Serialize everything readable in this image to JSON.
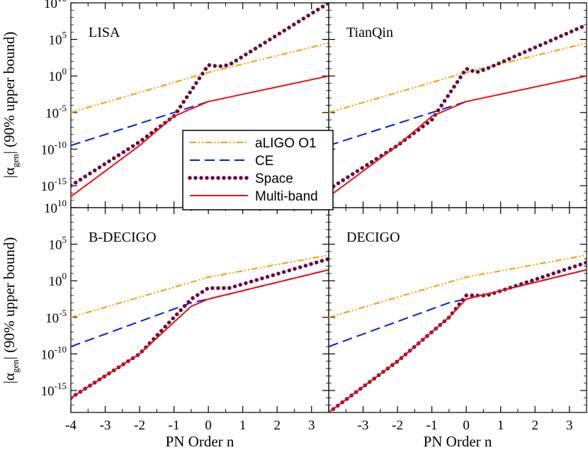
{
  "chart_data": {
    "type": "line",
    "xlabel": "PN Order n",
    "ylabel": "|α",
    "ylabel_sub": "gen",
    "ylabel_rest": "| (90% upper bound)",
    "xlim": [
      -4,
      3.5
    ],
    "ylim_log10": [
      -18,
      10
    ],
    "x_ticks": [
      -4,
      -3,
      -2,
      -1,
      0,
      1,
      2,
      3
    ],
    "x_tick_labels": [
      "-4",
      "-3",
      "-2",
      "-1",
      "0",
      "1",
      "2",
      "3"
    ],
    "y_ticks": [
      {
        "base": "10",
        "exp": "10"
      },
      {
        "base": "10",
        "exp": "5"
      },
      {
        "base": "10",
        "exp": "0"
      },
      {
        "base": "10",
        "exp": "-5"
      },
      {
        "base": "10",
        "exp": "-10"
      },
      {
        "base": "10",
        "exp": "-15"
      }
    ],
    "legend": [
      {
        "name": "aLIGO O1",
        "color": "#f5a000",
        "style": "dash-dot-dot"
      },
      {
        "name": "CE",
        "color": "#0022dd",
        "style": "dash"
      },
      {
        "name": "Space",
        "color": "#6b0a3c",
        "style": "dot"
      },
      {
        "name": "Multi-band",
        "color": "#ee1111",
        "style": "solid"
      }
    ],
    "panels": [
      {
        "title": "LISA",
        "series": [
          {
            "name": "aLIGO O1",
            "x": [
              -4,
              0,
              3.5
            ],
            "y_log10": [
              -5,
              0.5,
              4.5
            ]
          },
          {
            "name": "CE",
            "x": [
              -4,
              -1,
              0
            ],
            "y_log10": [
              -9.5,
              -5,
              -3.5
            ]
          },
          {
            "name": "Space",
            "x": [
              -4,
              -2,
              -1,
              0,
              0.3,
              0.6,
              3.5
            ],
            "y_log10": [
              -15,
              -9,
              -5.5,
              1.5,
              1.3,
              1.5,
              10
            ]
          },
          {
            "name": "Multi-band",
            "x": [
              -4,
              -2,
              -1,
              0,
              3.5
            ],
            "y_log10": [
              -16.5,
              -9.5,
              -5.5,
              -3.5,
              0
            ]
          }
        ]
      },
      {
        "title": "TianQin",
        "series": [
          {
            "name": "aLIGO O1",
            "x": [
              -4,
              0,
              3.5
            ],
            "y_log10": [
              -5,
              0.5,
              4.5
            ]
          },
          {
            "name": "CE",
            "x": [
              -4,
              -1,
              0
            ],
            "y_log10": [
              -9.5,
              -5,
              -3.5
            ]
          },
          {
            "name": "Space",
            "x": [
              -4,
              -2,
              -1,
              0,
              0.3,
              0.6,
              3.5
            ],
            "y_log10": [
              -15.5,
              -9.5,
              -6,
              1,
              0.5,
              1,
              7
            ]
          },
          {
            "name": "Multi-band",
            "x": [
              -4,
              -2,
              -1,
              0,
              3.5
            ],
            "y_log10": [
              -16.5,
              -9.5,
              -5.5,
              -3.5,
              0
            ]
          }
        ]
      },
      {
        "title": "B-DECIGO",
        "series": [
          {
            "name": "aLIGO O1",
            "x": [
              -4,
              0,
              3.5
            ],
            "y_log10": [
              -5,
              0.5,
              3.5
            ]
          },
          {
            "name": "CE",
            "x": [
              -4,
              -0.5,
              0,
              3.5
            ],
            "y_log10": [
              -9,
              -3,
              -2.5,
              1.5
            ]
          },
          {
            "name": "Space",
            "x": [
              -4,
              -2,
              -0.5,
              0,
              0.3,
              0.6,
              3.5
            ],
            "y_log10": [
              -16,
              -10,
              -2.5,
              -1,
              -1,
              -1,
              3
            ]
          },
          {
            "name": "Multi-band",
            "x": [
              -4,
              -2,
              -0.5,
              0,
              3.5
            ],
            "y_log10": [
              -16,
              -10,
              -3.5,
              -2.5,
              1.5
            ]
          }
        ]
      },
      {
        "title": "DECIGO",
        "series": [
          {
            "name": "aLIGO O1",
            "x": [
              -4,
              0,
              3.5
            ],
            "y_log10": [
              -5,
              0.5,
              3.5
            ]
          },
          {
            "name": "CE",
            "x": [
              -4,
              -0.5,
              0,
              3.5
            ],
            "y_log10": [
              -9,
              -3,
              -2.5,
              1.5
            ]
          },
          {
            "name": "Space",
            "x": [
              -4,
              -2,
              -0.5,
              0,
              0.3,
              0.6,
              3.5
            ],
            "y_log10": [
              -18,
              -11,
              -5,
              -2,
              -2,
              -2,
              2.5
            ]
          },
          {
            "name": "Multi-band",
            "x": [
              -4,
              -2,
              -0.5,
              0,
              3.5
            ],
            "y_log10": [
              -18,
              -11,
              -5,
              -2.5,
              1.5
            ]
          }
        ]
      }
    ]
  }
}
